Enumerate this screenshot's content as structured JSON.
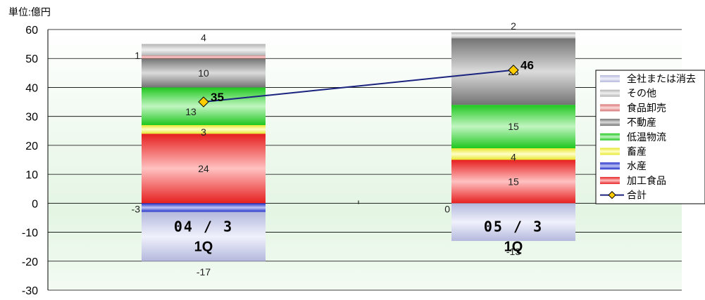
{
  "chart_data": {
    "type": "bar",
    "stacked": true,
    "unit_label": "単位:億円",
    "ylim": [
      -30,
      60
    ],
    "yticks": [
      -30,
      -20,
      -10,
      0,
      10,
      20,
      30,
      40,
      50,
      60
    ],
    "grid": true,
    "legend_position": "right",
    "categories": [
      {
        "line1": "04 / 3",
        "line2": "1Q"
      },
      {
        "line1": "05 / 3",
        "line2": "1Q"
      }
    ],
    "series": [
      {
        "name": "全社または消去",
        "values": [
          -17,
          -13
        ],
        "labels": [
          "-17",
          "-13"
        ],
        "color": "#c8ccf4"
      },
      {
        "name": "その他",
        "values": [
          4,
          2
        ],
        "labels": [
          "4",
          "2"
        ],
        "color": "#c8c8c8"
      },
      {
        "name": "食品卸売",
        "values": [
          1,
          0
        ],
        "labels": [
          "1",
          ""
        ],
        "color": "#f08080"
      },
      {
        "name": "不動産",
        "values": [
          10,
          23
        ],
        "labels": [
          "10",
          "23"
        ],
        "color": "#808080"
      },
      {
        "name": "低温物流",
        "values": [
          13,
          15
        ],
        "labels": [
          "13",
          "15"
        ],
        "color": "#22dd22"
      },
      {
        "name": "畜産",
        "values": [
          3,
          4
        ],
        "labels": [
          "3",
          "4"
        ],
        "color": "#ffff33"
      },
      {
        "name": "水産",
        "values": [
          -3,
          0
        ],
        "labels": [
          "-3",
          "0"
        ],
        "color": "#2233dd"
      },
      {
        "name": "加工食品",
        "values": [
          24,
          15
        ],
        "labels": [
          "24",
          "15"
        ],
        "color": "#ff2222"
      }
    ],
    "total": {
      "name": "合計",
      "values": [
        35,
        46
      ],
      "labels": [
        "35",
        "46"
      ],
      "line_color": "#1a237e",
      "marker_color": "#ffcc00"
    },
    "legend_order": [
      "全社または消去",
      "その他",
      "食品卸売",
      "不動産",
      "低温物流",
      "畜産",
      "水産",
      "加工食品",
      "合計"
    ]
  }
}
